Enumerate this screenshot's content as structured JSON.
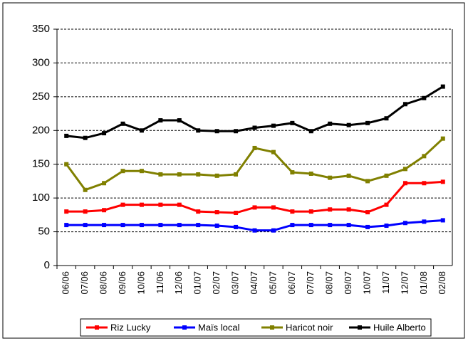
{
  "chart_data": {
    "type": "line",
    "categories": [
      "06/06",
      "07/06",
      "08/06",
      "09/06",
      "10/06",
      "11/06",
      "12/06",
      "01/07",
      "02/07",
      "03/07",
      "04/07",
      "05/07",
      "06/07",
      "07/07",
      "08/07",
      "09/07",
      "10/07",
      "11/07",
      "12/07",
      "01/08",
      "02/08"
    ],
    "series": [
      {
        "name": "Riz Lucky",
        "color": "#ff0000",
        "values": [
          80,
          80,
          82,
          90,
          90,
          90,
          90,
          80,
          79,
          78,
          86,
          86,
          80,
          80,
          83,
          83,
          79,
          90,
          122,
          122,
          124
        ]
      },
      {
        "name": "Maïs local",
        "color": "#0000ff",
        "values": [
          60,
          60,
          60,
          60,
          60,
          60,
          60,
          60,
          59,
          57,
          52,
          52,
          60,
          60,
          60,
          60,
          57,
          59,
          63,
          65,
          67
        ]
      },
      {
        "name": "Haricot noir",
        "color": "#808000",
        "values": [
          150,
          112,
          122,
          140,
          140,
          135,
          135,
          135,
          133,
          135,
          174,
          168,
          138,
          136,
          130,
          133,
          125,
          133,
          143,
          162,
          188
        ]
      },
      {
        "name": "Huile Alberto",
        "color": "#000000",
        "values": [
          192,
          189,
          196,
          210,
          200,
          215,
          215,
          200,
          199,
          199,
          204,
          207,
          211,
          199,
          210,
          208,
          211,
          218,
          239,
          248,
          265
        ]
      }
    ],
    "ylim": [
      0,
      350
    ],
    "yticks": [
      0,
      50,
      100,
      150,
      200,
      250,
      300,
      350
    ],
    "grid": true,
    "legend": "bottom"
  }
}
